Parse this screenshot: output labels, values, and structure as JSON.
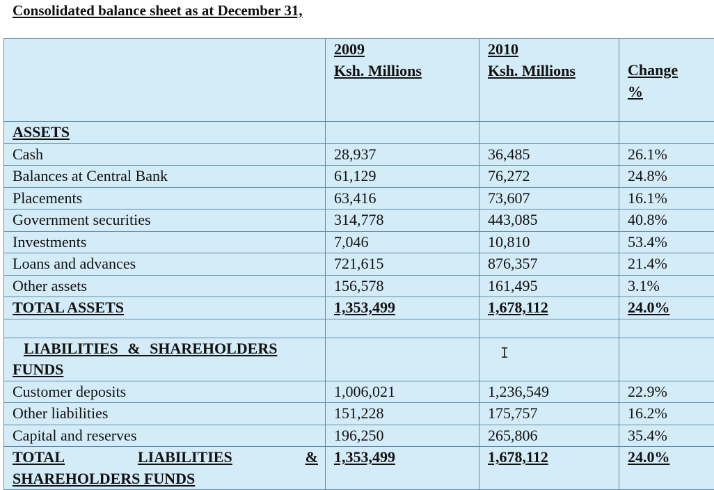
{
  "title": "Consolidated balance sheet as at December 31,",
  "header": {
    "col2_year": "2009",
    "col2_unit": "Ksh. Millions",
    "col3_year": "2010",
    "col3_unit": "Ksh. Millions",
    "col4_line1": "Change",
    "col4_line2": "%"
  },
  "assets": {
    "heading": "ASSETS",
    "rows": [
      {
        "label": "Cash",
        "y2009": "28,937",
        "y2010": "36,485",
        "change": "26.1%"
      },
      {
        "label": "Balances at Central Bank",
        "y2009": "61,129",
        "y2010": "76,272",
        "change": "24.8%"
      },
      {
        "label": "Placements",
        "y2009": "63,416",
        "y2010": "73,607",
        "change": "16.1%"
      },
      {
        "label": "Government securities",
        "y2009": "314,778",
        "y2010": "443,085",
        "change": "40.8%"
      },
      {
        "label": "Investments",
        "y2009": "7,046",
        "y2010": "10,810",
        "change": "53.4%"
      },
      {
        "label": "Loans and advances",
        "y2009": "721,615",
        "y2010": "876,357",
        "change": "21.4%"
      },
      {
        "label": "Other assets",
        "y2009": "156,578",
        "y2010": "161,495",
        "change": "3.1%"
      }
    ],
    "total": {
      "label": "TOTAL ASSETS",
      "y2009": "1,353,499",
      "y2010": "1,678,112",
      "change": "24.0%"
    }
  },
  "liabilities": {
    "heading_line1": "LIABILITIES & SHAREHOLDERS",
    "heading_line2": "FUNDS",
    "rows": [
      {
        "label": "Customer deposits",
        "y2009": "1,006,021",
        "y2010": "1,236,549",
        "change": "22.9%"
      },
      {
        "label": "Other liabilities",
        "y2009": "151,228",
        "y2010": "175,757",
        "change": "16.2%"
      },
      {
        "label": "Capital and reserves",
        "y2009": "196,250",
        "y2010": "265,806",
        "change": "35.4%"
      }
    ],
    "total": {
      "label_w1": "TOTAL",
      "label_w2": "LIABILITIES",
      "label_w3": "&",
      "label_line2": "SHAREHOLDERS FUNDS",
      "y2009": "1,353,499",
      "y2010": "1,678,112",
      "change": "24.0%"
    }
  },
  "cursor_glyph": "I"
}
